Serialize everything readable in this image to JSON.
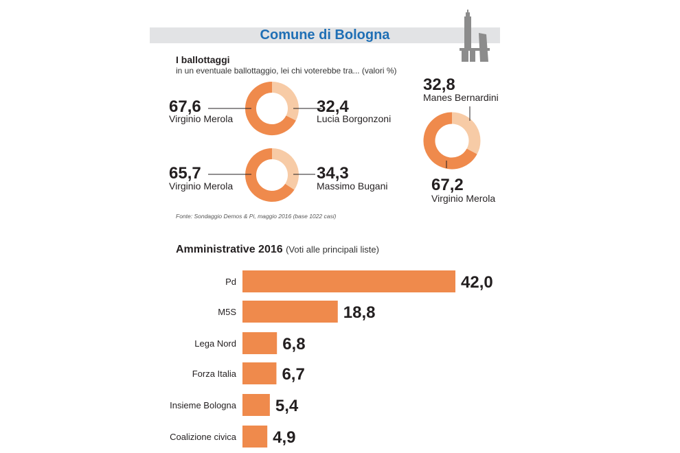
{
  "header": {
    "title": "Comune di Bologna",
    "icon": "two-towers-icon"
  },
  "colors": {
    "accent": "#ef8a4c",
    "light": "#f7cba6",
    "title_blue": "#1f6fb5",
    "band_gray": "#e2e3e5"
  },
  "ballottaggi": {
    "title": "I ballottaggi",
    "subtitle": "in un eventuale ballottaggio, lei chi voterebbe tra... (valori %)",
    "source": "Fonte: Sondaggio Demos & Pi, maggio 2016 (base 1022 casi)"
  },
  "chart_data": [
    {
      "type": "pie",
      "donut": true,
      "slices": [
        {
          "label": "Virginio Merola",
          "value": 67.6,
          "display": "67,6"
        },
        {
          "label": "Lucia Borgonzoni",
          "value": 32.4,
          "display": "32,4"
        }
      ]
    },
    {
      "type": "pie",
      "donut": true,
      "slices": [
        {
          "label": "Virginio Merola",
          "value": 65.7,
          "display": "65,7"
        },
        {
          "label": "Massimo Bugani",
          "value": 34.3,
          "display": "34,3"
        }
      ]
    },
    {
      "type": "pie",
      "donut": true,
      "slices": [
        {
          "label": "Virginio Merola",
          "value": 67.2,
          "display": "67,2"
        },
        {
          "label": "Manes Bernardini",
          "value": 32.8,
          "display": "32,8"
        }
      ]
    },
    {
      "type": "bar",
      "orientation": "horizontal",
      "title": "Amministrative 2016",
      "subtitle": "(Voti alle principali liste)",
      "categories": [
        "Pd",
        "M5S",
        "Lega Nord",
        "Forza Italia",
        "Insieme Bologna",
        "Coalizione civica"
      ],
      "values": [
        42.0,
        18.8,
        6.8,
        6.7,
        5.4,
        4.9
      ],
      "labels": [
        "42,0",
        "18,8",
        "6,8",
        "6,7",
        "5,4",
        "4,9"
      ]
    }
  ]
}
